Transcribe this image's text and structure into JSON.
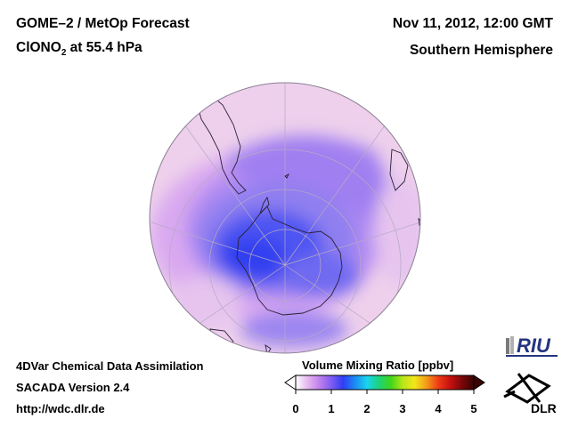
{
  "header": {
    "title_line1": "GOME–2 / MetOp Forecast",
    "species_main": "ClONO",
    "species_sub": "2",
    "species_rest": " at 55.4 hPa",
    "datetime": "Nov 11, 2012, 12:00 GMT",
    "hemisphere": "Southern Hemisphere"
  },
  "footer": {
    "line1": "4DVar Chemical Data Assimilation",
    "line2": "SACADA Version 2.4",
    "line3": "http://wdc.dlr.de"
  },
  "colorbar": {
    "title": "Volume Mixing Ratio [ppbv]",
    "ticks": [
      "0",
      "1",
      "2",
      "3",
      "4",
      "5"
    ],
    "min": 0,
    "max": 5,
    "colors": [
      "#ffffff",
      "#e6b8f0",
      "#c080ee",
      "#7f5cf2",
      "#2e3ef5",
      "#1c8cf3",
      "#19d4f0",
      "#1dd37b",
      "#3fd51a",
      "#b8e619",
      "#f2e61a",
      "#f39c19",
      "#ef3c16",
      "#c8100f",
      "#7a0707",
      "#3a0404"
    ]
  },
  "logos": {
    "riu": "RIU",
    "dlr": "DLR"
  },
  "map": {
    "projection": "orthographic",
    "center": "South Pole",
    "background_field": "#f0c8ec",
    "low_field": "#3f4ef2",
    "mid_field": "#8f7ff0"
  }
}
